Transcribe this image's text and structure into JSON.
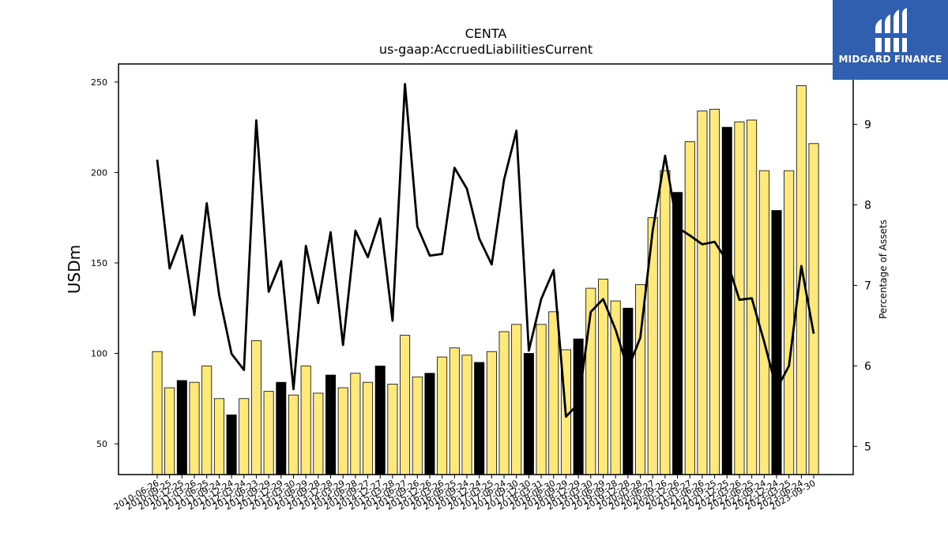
{
  "chart_data": {
    "type": "bar",
    "title": "CENTA",
    "subtitle": "us-gaap:AccruedLiabilitiesCurrent",
    "ylabel": "USDm",
    "y2label": "Percentage of Assets",
    "ylim": [
      33,
      260
    ],
    "y2lim": [
      4.65,
      9.75
    ],
    "yticks": [
      50,
      100,
      150,
      200,
      250
    ],
    "y2ticks": [
      5,
      6,
      7,
      8,
      9
    ],
    "categories": [
      "2010-06-26",
      "2010-09-25",
      "2010-12-25",
      "2011-03-26",
      "2011-06-25",
      "2011-09-24",
      "2011-12-24",
      "2012-03-24",
      "2012-06-23",
      "2012-09-29",
      "2012-12-29",
      "2013-03-30",
      "2013-06-29",
      "2013-09-28",
      "2013-12-28",
      "2014-03-29",
      "2014-06-28",
      "2014-09-27",
      "2014-12-27",
      "2015-03-28",
      "2015-06-27",
      "2015-09-26",
      "2015-12-26",
      "2016-03-26",
      "2016-06-25",
      "2016-09-24",
      "2016-12-24",
      "2017-03-25",
      "2017-06-24",
      "2017-09-30",
      "2017-12-30",
      "2018-03-31",
      "2018-06-30",
      "2018-09-29",
      "2018-12-29",
      "2019-03-30",
      "2019-06-29",
      "2019-09-28",
      "2019-12-28",
      "2020-03-28",
      "2020-06-27",
      "2020-09-26",
      "2020-12-26",
      "2021-03-27",
      "2021-06-26",
      "2021-09-25",
      "2021-12-25",
      "2022-03-26",
      "2022-06-25",
      "2022-09-24",
      "2022-12-24",
      "2023-03-25",
      "2023-06-24",
      "2023-09-30"
    ],
    "series": [
      {
        "role": "bars",
        "values": [
          101,
          81,
          85,
          84,
          93,
          75,
          66,
          75,
          107,
          79,
          84,
          77,
          93,
          78,
          88,
          81,
          89,
          84,
          93,
          83,
          110,
          87,
          89,
          98,
          103,
          99,
          95,
          101,
          112,
          116,
          100,
          116,
          123,
          102,
          108,
          136,
          141,
          129,
          125,
          138,
          175,
          201,
          189,
          217,
          234,
          235,
          225,
          228,
          229,
          201,
          179,
          201,
          248,
          216
        ],
        "colors": [
          "#ffe97a",
          "#ffe97a",
          "#000000",
          "#ffe97a",
          "#ffe97a",
          "#ffe97a",
          "#000000",
          "#ffe97a",
          "#ffe97a",
          "#ffe97a",
          "#000000",
          "#ffe97a",
          "#ffe97a",
          "#ffe97a",
          "#000000",
          "#ffe97a",
          "#ffe97a",
          "#ffe97a",
          "#000000",
          "#ffe97a",
          "#ffe97a",
          "#ffe97a",
          "#000000",
          "#ffe97a",
          "#ffe97a",
          "#ffe97a",
          "#000000",
          "#ffe97a",
          "#ffe97a",
          "#ffe97a",
          "#000000",
          "#ffe97a",
          "#ffe97a",
          "#ffe97a",
          "#000000",
          "#ffe97a",
          "#ffe97a",
          "#ffe97a",
          "#000000",
          "#ffe97a",
          "#ffe97a",
          "#ffe97a",
          "#000000",
          "#ffe97a",
          "#ffe97a",
          "#ffe97a",
          "#000000",
          "#ffe97a",
          "#ffe97a",
          "#ffe97a",
          "#000000",
          "#ffe97a",
          "#ffe97a",
          "#ffe97a"
        ]
      },
      {
        "role": "line",
        "axis": "right",
        "values": [
          8.56,
          7.21,
          7.62,
          6.63,
          8.02,
          6.88,
          6.15,
          5.95,
          9.05,
          6.92,
          7.3,
          5.71,
          7.49,
          6.78,
          7.66,
          6.26,
          7.68,
          7.35,
          7.83,
          6.56,
          9.5,
          7.73,
          7.37,
          7.39,
          8.46,
          8.2,
          7.58,
          7.26,
          8.31,
          8.92,
          6.19,
          6.83,
          7.19,
          5.37,
          5.53,
          6.67,
          6.83,
          6.45,
          5.96,
          6.35,
          7.68,
          8.61,
          7.72,
          7.62,
          7.51,
          7.54,
          7.3,
          6.82,
          6.84,
          6.3,
          5.71,
          6.0,
          7.24,
          6.4
        ]
      }
    ],
    "colors": {
      "bar_yellow": "#ffe97a",
      "bar_black": "#000000",
      "line": "#000000",
      "logo_bg": "#2f5fae"
    }
  },
  "logo": {
    "text": "MIDGARD FINANCE",
    "icon": "midgard-logo-icon"
  }
}
